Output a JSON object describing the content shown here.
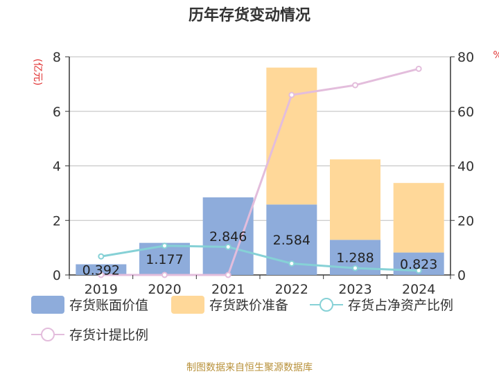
{
  "chart_data": {
    "type": "bar",
    "title": "历年存货变动情况",
    "categories": [
      "2019",
      "2020",
      "2021",
      "2022",
      "2023",
      "2024"
    ],
    "left_axis": {
      "unit_label": "(亿元)",
      "range": [
        0,
        8
      ],
      "ticks": [
        "0",
        "2",
        "4",
        "6",
        "8"
      ]
    },
    "right_axis": {
      "unit_label": "%",
      "range": [
        0,
        80
      ],
      "ticks": [
        "0",
        "20",
        "40",
        "60",
        "80"
      ]
    },
    "series": [
      {
        "name": "存货账面价值",
        "kind": "bar",
        "axis": "left",
        "color": "#8eacdb",
        "values": [
          0.392,
          1.177,
          2.846,
          2.584,
          1.288,
          0.823
        ],
        "labels": [
          "0.392",
          "1.177",
          "2.846",
          "2.584",
          "1.288",
          "0.823"
        ]
      },
      {
        "name": "存货跌价准备",
        "kind": "bar",
        "axis": "left",
        "stacked": true,
        "color": "#ffd899",
        "values": [
          0,
          0,
          0,
          5.02,
          2.95,
          2.55
        ]
      },
      {
        "name": "存货占净资产比例",
        "kind": "line",
        "axis": "right",
        "color": "#86d1d6",
        "values": [
          6.8,
          10.7,
          10.3,
          4.2,
          2.5,
          1.6
        ]
      },
      {
        "name": "存货计提比例",
        "kind": "line",
        "axis": "right",
        "color": "#e3bddc",
        "values": [
          0,
          0,
          0,
          66.0,
          69.6,
          75.6
        ]
      }
    ],
    "grid": true,
    "legend_position": "bottom",
    "source": "制图数据来自恒生聚源数据库"
  }
}
